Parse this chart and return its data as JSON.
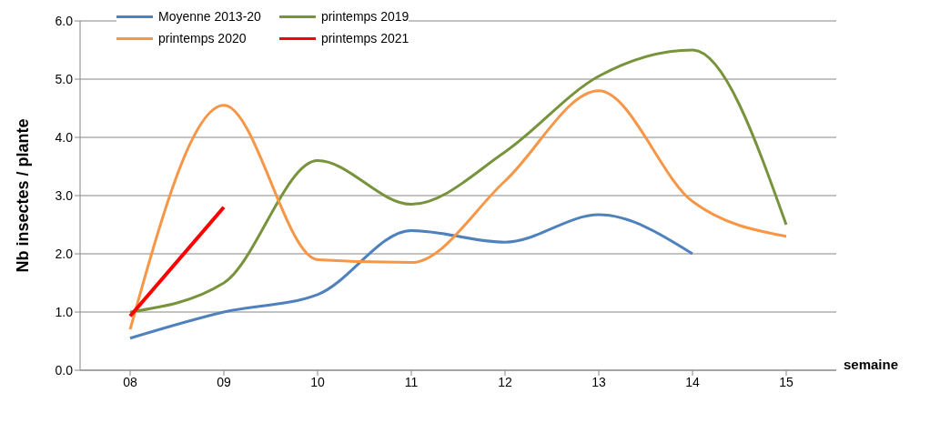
{
  "chart_data": {
    "type": "line",
    "xlabel": "semaine",
    "ylabel": "Nb insectes / plante",
    "categories": [
      "08",
      "09",
      "10",
      "11",
      "12",
      "13",
      "14",
      "15"
    ],
    "series": [
      {
        "name": "Moyenne 2013-20",
        "color": "#4f81bd",
        "values": [
          0.55,
          1.0,
          1.3,
          2.4,
          2.2,
          2.67,
          2.0,
          null
        ]
      },
      {
        "name": "printemps 2019",
        "color": "#77933c",
        "values": [
          1.0,
          1.5,
          3.6,
          2.85,
          3.75,
          5.05,
          5.5,
          2.5
        ]
      },
      {
        "name": "printemps 2020",
        "color": "#f79646",
        "values": [
          0.7,
          4.55,
          1.9,
          1.85,
          3.25,
          4.8,
          2.9,
          2.3
        ]
      },
      {
        "name": "printemps 2021",
        "color": "#ff0000",
        "values": [
          0.93,
          2.8,
          null,
          null,
          null,
          null,
          null,
          null
        ]
      }
    ],
    "ylim": [
      0,
      6
    ],
    "yticks": [
      {
        "value": 0,
        "label": "0.0"
      },
      {
        "value": 1,
        "label": "1.0"
      },
      {
        "value": 2,
        "label": "2.0"
      },
      {
        "value": 3,
        "label": "3.0"
      },
      {
        "value": 4,
        "label": "4.0"
      },
      {
        "value": 5,
        "label": "5.0"
      },
      {
        "value": 6,
        "label": "6.0"
      }
    ],
    "grid": "y",
    "legend": "top left"
  }
}
